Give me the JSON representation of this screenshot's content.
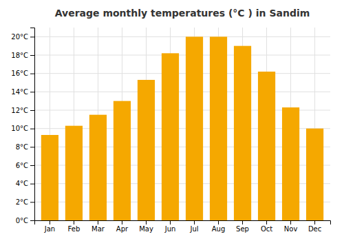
{
  "chart_data": {
    "type": "bar",
    "title": "Average monthly temperatures (°C ) in Sandim",
    "categories": [
      "Jan",
      "Feb",
      "Mar",
      "Apr",
      "May",
      "Jun",
      "Jul",
      "Aug",
      "Sep",
      "Oct",
      "Nov",
      "Dec"
    ],
    "values": [
      9.3,
      10.3,
      11.5,
      13.0,
      15.3,
      18.2,
      20.0,
      20.0,
      19.0,
      16.2,
      12.3,
      10.0
    ],
    "color": "#F5A800",
    "ylim": [
      0,
      21
    ],
    "yticks": [
      {
        "value": 0,
        "label": "0°C"
      },
      {
        "value": 2,
        "label": "2°C"
      },
      {
        "value": 4,
        "label": "4°C"
      },
      {
        "value": 6,
        "label": "6°C"
      },
      {
        "value": 8,
        "label": "8°C"
      },
      {
        "value": 10,
        "label": "10°C"
      },
      {
        "value": 12,
        "label": "12°C"
      },
      {
        "value": 14,
        "label": "14°C"
      },
      {
        "value": 16,
        "label": "16°C"
      },
      {
        "value": 18,
        "label": "18°C"
      },
      {
        "value": 20,
        "label": "20°C"
      }
    ],
    "grid": true
  }
}
